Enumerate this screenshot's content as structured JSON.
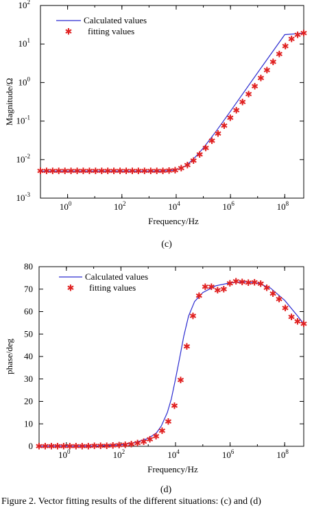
{
  "chart_data": [
    {
      "type": "line",
      "panel_label": "(c)",
      "xlabel": "Frequency/Hz",
      "ylabel": "Magnitude/Ω",
      "xscale": "log",
      "yscale": "log",
      "xlim": [
        0.1,
        500000000
      ],
      "ylim": [
        0.001,
        100
      ],
      "x_ticks": [
        {
          "value": 1,
          "base": "10",
          "exp": "0"
        },
        {
          "value": 100,
          "base": "10",
          "exp": "2"
        },
        {
          "value": 10000,
          "base": "10",
          "exp": "4"
        },
        {
          "value": 1000000,
          "base": "10",
          "exp": "6"
        },
        {
          "value": 100000000,
          "base": "10",
          "exp": "8"
        }
      ],
      "y_ticks": [
        {
          "value": 0.001,
          "base": "10",
          "exp": "-3"
        },
        {
          "value": 0.01,
          "base": "10",
          "exp": "-2"
        },
        {
          "value": 0.1,
          "base": "10",
          "exp": "-1"
        },
        {
          "value": 1,
          "base": "10",
          "exp": "0"
        },
        {
          "value": 10,
          "base": "10",
          "exp": "1"
        },
        {
          "value": 100,
          "base": "10",
          "exp": "2"
        }
      ],
      "legend_position": "top-left",
      "grid": false,
      "series": [
        {
          "name": "Calculated values",
          "style": "line",
          "color": "#2a2ad0",
          "x": [
            0.1,
            1000,
            3000,
            6000,
            10000,
            15000,
            20000,
            30000,
            50000,
            100000,
            300000,
            1000000,
            10000000,
            100000000,
            500000000
          ],
          "y": [
            0.005,
            0.005,
            0.00505,
            0.0052,
            0.0055,
            0.006,
            0.0066,
            0.0082,
            0.0115,
            0.02,
            0.055,
            0.18,
            1.8,
            17.5,
            19
          ]
        },
        {
          "name": "fitting values",
          "style": "marker",
          "color": "#e02020",
          "x": [
            0.1,
            0.168,
            0.282,
            0.474,
            0.797,
            1.34,
            2.25,
            3.79,
            6.36,
            10.7,
            18,
            30.2,
            50.8,
            85.4,
            144,
            241,
            406,
            682,
            1150,
            1930,
            3240,
            5450,
            9150,
            15400,
            25900,
            43500,
            73100,
            123000,
            207000,
            348000,
            584000,
            982000,
            1650000,
            2770000,
            4660000,
            7840000,
            13200000,
            22100000,
            37200000,
            62600000,
            105000000,
            177000000,
            297000000,
            500000000
          ],
          "y": [
            0.005,
            0.005,
            0.005,
            0.005,
            0.005,
            0.005,
            0.005,
            0.005,
            0.005,
            0.005,
            0.005,
            0.005,
            0.005,
            0.005,
            0.005,
            0.005,
            0.005,
            0.005,
            0.005,
            0.005,
            0.00503,
            0.0051,
            0.0053,
            0.0059,
            0.0071,
            0.0094,
            0.0135,
            0.02,
            0.0308,
            0.047,
            0.075,
            0.12,
            0.19,
            0.31,
            0.5,
            0.8,
            1.3,
            2.1,
            3.4,
            5.4,
            8.7,
            13.5,
            17,
            19
          ]
        }
      ]
    },
    {
      "type": "line",
      "panel_label": "(d)",
      "xlabel": "Frequency/Hz",
      "ylabel": "phase/deg",
      "xscale": "log",
      "yscale": "linear",
      "xlim": [
        0.1,
        500000000
      ],
      "ylim": [
        0,
        80
      ],
      "x_ticks": [
        {
          "value": 1,
          "base": "10",
          "exp": "0"
        },
        {
          "value": 100,
          "base": "10",
          "exp": "2"
        },
        {
          "value": 10000,
          "base": "10",
          "exp": "4"
        },
        {
          "value": 1000000,
          "base": "10",
          "exp": "6"
        },
        {
          "value": 100000000,
          "base": "10",
          "exp": "8"
        }
      ],
      "y_ticks": [
        {
          "value": 0,
          "label": "0"
        },
        {
          "value": 10,
          "label": "10"
        },
        {
          "value": 20,
          "label": "20"
        },
        {
          "value": 30,
          "label": "30"
        },
        {
          "value": 40,
          "label": "40"
        },
        {
          "value": 50,
          "label": "50"
        },
        {
          "value": 60,
          "label": "60"
        },
        {
          "value": 70,
          "label": "70"
        },
        {
          "value": 80,
          "label": "80"
        }
      ],
      "legend_position": "top-left",
      "grid": false,
      "series": [
        {
          "name": "Calculated values",
          "style": "line",
          "color": "#2a2ad0",
          "x": [
            0.1,
            10,
            100,
            300,
            1000,
            2000,
            3000,
            5000,
            7000,
            10000,
            14000,
            20000,
            30000,
            50000,
            100000,
            300000,
            1000000,
            3000000,
            10000000,
            30000000,
            100000000,
            300000000,
            500000000
          ],
          "y": [
            0,
            0.1,
            0.6,
            1.5,
            3.5,
            6,
            9,
            15,
            21,
            30,
            39,
            49,
            58,
            64.5,
            68.5,
            71.5,
            72.8,
            73.3,
            72.7,
            70.5,
            65,
            58,
            54.5
          ]
        },
        {
          "name": "fitting values",
          "style": "marker",
          "color": "#e02020",
          "x": [
            0.1,
            0.168,
            0.282,
            0.474,
            0.797,
            1.34,
            2.25,
            3.79,
            6.36,
            10.7,
            18,
            30.2,
            50.8,
            85.4,
            144,
            241,
            406,
            682,
            1150,
            1930,
            3240,
            5450,
            9150,
            15400,
            25900,
            43500,
            73100,
            123000,
            207000,
            348000,
            584000,
            982000,
            1650000,
            2770000,
            4660000,
            7840000,
            13200000,
            22100000,
            37200000,
            62600000,
            105000000,
            177000000,
            297000000,
            500000000
          ],
          "y": [
            0,
            0,
            0,
            0,
            0,
            0,
            0,
            0,
            0,
            0.1,
            0.1,
            0.2,
            0.3,
            0.4,
            0.6,
            0.9,
            1.3,
            2,
            3,
            4.5,
            6.8,
            11,
            18,
            29.5,
            44.5,
            58,
            67,
            71,
            71,
            69.5,
            70,
            72.5,
            73.5,
            73.2,
            72.8,
            73,
            72.3,
            70.5,
            68,
            65.5,
            61.5,
            57.5,
            55.5,
            54.5
          ]
        }
      ]
    }
  ],
  "caption": "Figure 2. Vector fitting results of the different situations: (c) and (d)"
}
